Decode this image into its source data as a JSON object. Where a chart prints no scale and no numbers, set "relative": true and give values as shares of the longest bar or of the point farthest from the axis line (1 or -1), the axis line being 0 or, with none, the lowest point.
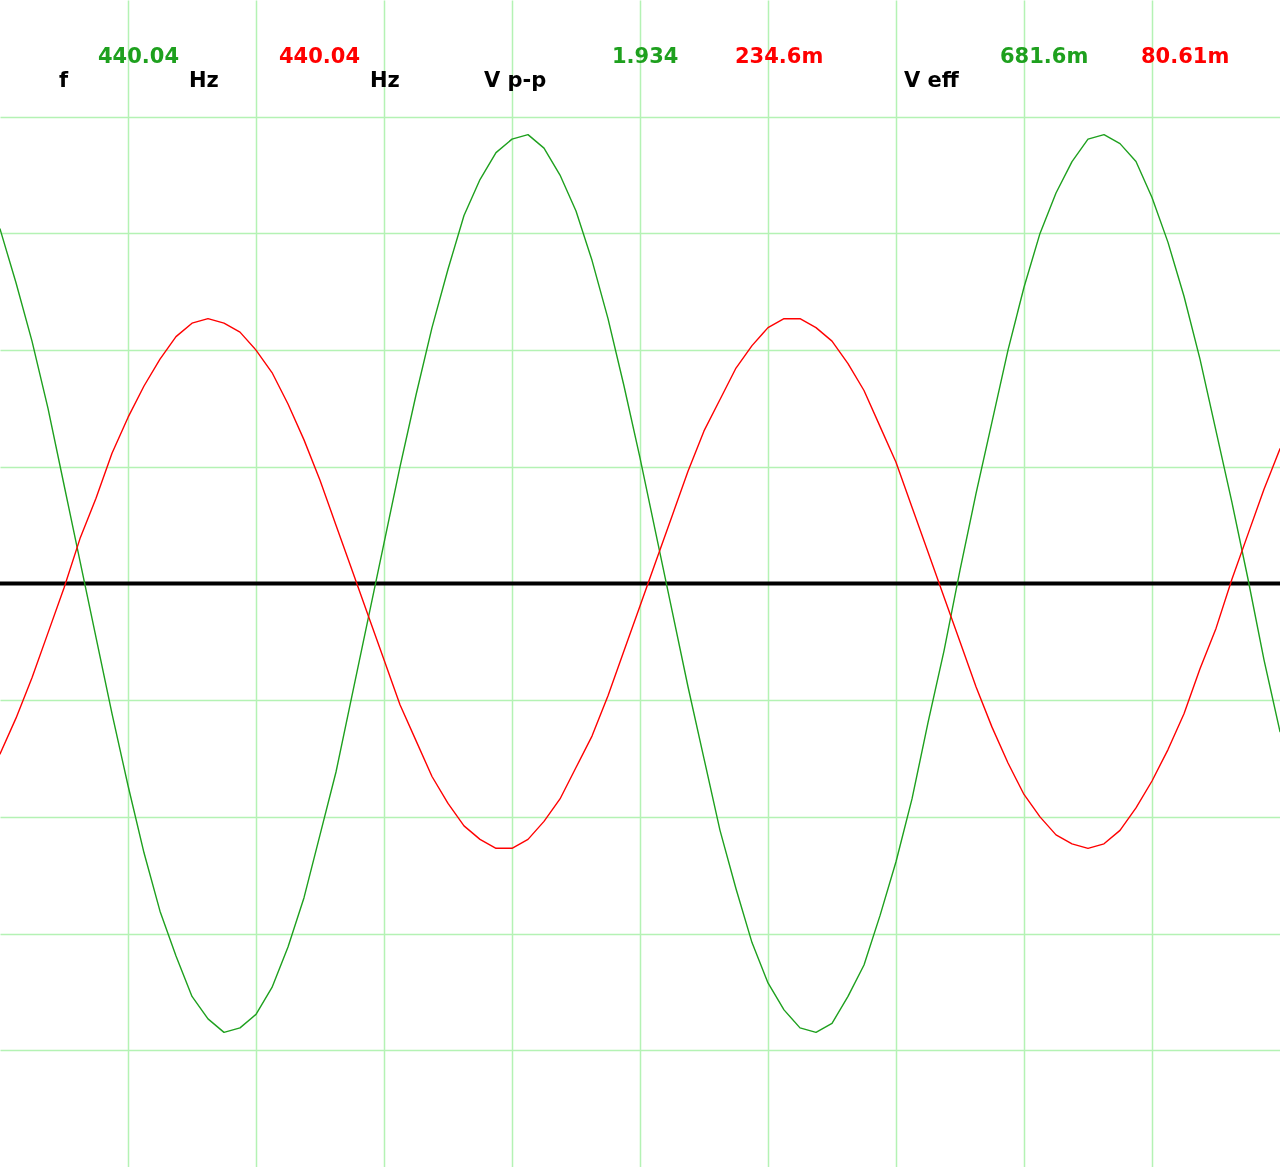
{
  "chart_data": {
    "type": "line",
    "relative": true,
    "grid": true,
    "categories": [
      null,
      null,
      null,
      null,
      null,
      null,
      null,
      null,
      null,
      null,
      null,
      null,
      null,
      null,
      null,
      null,
      null,
      null,
      null,
      null,
      null,
      null,
      null,
      null,
      null,
      null,
      null,
      null,
      null,
      null,
      null,
      null,
      null,
      null,
      null,
      null,
      null,
      null,
      null,
      null,
      null,
      null,
      null,
      null,
      null,
      null,
      null,
      null,
      null,
      null,
      null,
      null,
      null,
      null,
      null,
      null,
      null,
      null,
      null,
      null,
      null,
      null,
      null,
      null,
      null,
      null,
      null,
      null,
      null,
      null,
      null,
      null,
      null,
      null,
      null,
      null,
      null,
      null,
      null,
      null,
      null
    ],
    "series": [
      {
        "color": "#1ea01e",
        "values": [
          0.79,
          0.67,
          0.54,
          0.39,
          0.22,
          0.05,
          -0.12,
          -0.29,
          -0.45,
          -0.6,
          -0.73,
          -0.83,
          -0.92,
          -0.97,
          -1,
          -0.99,
          -0.96,
          -0.9,
          -0.81,
          -0.7,
          -0.56,
          -0.42,
          -0.25,
          -0.08,
          0.09,
          0.26,
          0.42,
          0.57,
          0.7,
          0.82,
          0.9,
          0.96,
          0.99,
          1,
          0.97,
          0.91,
          0.83,
          0.72,
          0.59,
          0.44,
          0.28,
          0.11,
          -0.06,
          -0.23,
          -0.39,
          -0.55,
          -0.68,
          -0.8,
          -0.89,
          -0.95,
          -0.99,
          -1,
          -0.98,
          -0.92,
          -0.85,
          -0.74,
          -0.62,
          -0.48,
          -0.31,
          -0.15,
          0.03,
          0.2,
          0.36,
          0.52,
          0.66,
          0.78,
          0.87,
          0.94,
          0.99,
          1,
          0.98,
          0.94,
          0.86,
          0.76,
          0.64,
          0.5,
          0.34,
          0.18,
          0.01,
          -0.17,
          -0.33
        ]
      },
      {
        "color": "#ff0000",
        "values": [
          -0.38,
          -0.3,
          -0.21,
          -0.11,
          -0.01,
          0.1,
          0.19,
          0.29,
          0.37,
          0.44,
          0.5,
          0.55,
          0.58,
          0.59,
          0.58,
          0.56,
          0.52,
          0.47,
          0.4,
          0.32,
          0.23,
          0.13,
          0.03,
          -0.07,
          -0.17,
          -0.27,
          -0.35,
          -0.43,
          -0.49,
          -0.54,
          -0.57,
          -0.59,
          -0.59,
          -0.57,
          -0.53,
          -0.48,
          -0.41,
          -0.34,
          -0.25,
          -0.15,
          -0.05,
          0.05,
          0.15,
          0.25,
          0.34,
          0.41,
          0.48,
          0.53,
          0.57,
          0.59,
          0.59,
          0.57,
          0.54,
          0.49,
          0.43,
          0.35,
          0.27,
          0.17,
          0.07,
          -0.03,
          -0.13,
          -0.23,
          -0.32,
          -0.4,
          -0.47,
          -0.52,
          -0.56,
          -0.58,
          -0.59,
          -0.58,
          -0.55,
          -0.5,
          -0.44,
          -0.37,
          -0.29,
          -0.19,
          -0.1,
          0.01,
          0.11,
          0.21,
          0.3
        ]
      }
    ],
    "annotations": [
      "f",
      "440.04",
      "Hz",
      "440.04",
      "Hz",
      "V p-p",
      "1.934",
      "234.6m",
      "V eff",
      "681.6m",
      "80.61m"
    ]
  }
}
